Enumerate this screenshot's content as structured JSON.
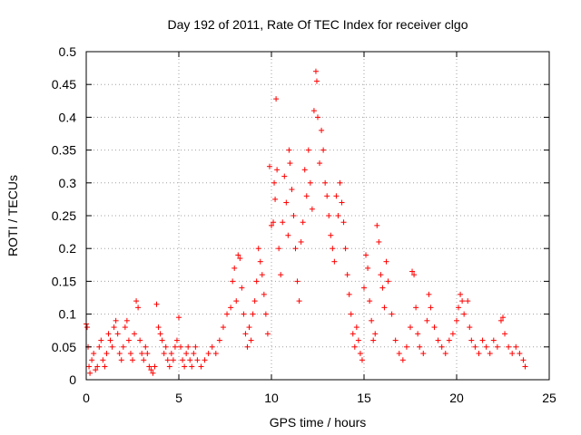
{
  "chart_data": {
    "type": "scatter",
    "title": "Day 192 of 2011, Rate Of TEC Index for receiver clgo",
    "xlabel": "GPS time / hours",
    "ylabel": "ROTI / TECUs",
    "xlim": [
      0,
      25
    ],
    "ylim": [
      0,
      0.5
    ],
    "xticks": [
      0,
      5,
      10,
      15,
      20,
      25
    ],
    "yticks": [
      0,
      0.05,
      0.1,
      0.15,
      0.2,
      0.25,
      0.3,
      0.35,
      0.4,
      0.45,
      0.5
    ],
    "xtick_labels": [
      "0",
      "5",
      "10",
      "15",
      "20",
      "25"
    ],
    "ytick_labels": [
      "0",
      "0.05",
      "0.1",
      "0.15",
      "0.2",
      "0.25",
      "0.3",
      "0.35",
      "0.4",
      "0.45",
      "0.5"
    ],
    "grid": true,
    "marker": "plus",
    "color": "#ff0000",
    "points": [
      [
        0.0,
        0.085
      ],
      [
        0.05,
        0.08
      ],
      [
        0.1,
        0.05
      ],
      [
        0.15,
        0.02
      ],
      [
        0.2,
        0.01
      ],
      [
        0.3,
        0.03
      ],
      [
        0.4,
        0.04
      ],
      [
        0.5,
        0.015
      ],
      [
        0.6,
        0.02
      ],
      [
        0.7,
        0.05
      ],
      [
        0.8,
        0.06
      ],
      [
        0.9,
        0.03
      ],
      [
        1.0,
        0.02
      ],
      [
        1.1,
        0.04
      ],
      [
        1.2,
        0.07
      ],
      [
        1.3,
        0.06
      ],
      [
        1.4,
        0.05
      ],
      [
        1.5,
        0.08
      ],
      [
        1.6,
        0.09
      ],
      [
        1.7,
        0.07
      ],
      [
        1.8,
        0.04
      ],
      [
        1.9,
        0.03
      ],
      [
        2.0,
        0.05
      ],
      [
        2.1,
        0.08
      ],
      [
        2.2,
        0.09
      ],
      [
        2.3,
        0.06
      ],
      [
        2.4,
        0.04
      ],
      [
        2.5,
        0.03
      ],
      [
        2.6,
        0.07
      ],
      [
        2.7,
        0.12
      ],
      [
        2.8,
        0.11
      ],
      [
        2.9,
        0.06
      ],
      [
        3.0,
        0.04
      ],
      [
        3.1,
        0.03
      ],
      [
        3.2,
        0.05
      ],
      [
        3.3,
        0.04
      ],
      [
        3.4,
        0.02
      ],
      [
        3.5,
        0.015
      ],
      [
        3.6,
        0.01
      ],
      [
        3.7,
        0.02
      ],
      [
        3.8,
        0.115
      ],
      [
        3.9,
        0.08
      ],
      [
        4.0,
        0.07
      ],
      [
        4.1,
        0.06
      ],
      [
        4.2,
        0.04
      ],
      [
        4.3,
        0.05
      ],
      [
        4.4,
        0.03
      ],
      [
        4.5,
        0.02
      ],
      [
        4.6,
        0.04
      ],
      [
        4.7,
        0.03
      ],
      [
        4.8,
        0.05
      ],
      [
        4.9,
        0.06
      ],
      [
        5.0,
        0.095
      ],
      [
        5.1,
        0.05
      ],
      [
        5.2,
        0.03
      ],
      [
        5.3,
        0.02
      ],
      [
        5.4,
        0.04
      ],
      [
        5.5,
        0.05
      ],
      [
        5.6,
        0.03
      ],
      [
        5.7,
        0.02
      ],
      [
        5.8,
        0.04
      ],
      [
        5.9,
        0.05
      ],
      [
        6.0,
        0.03
      ],
      [
        6.2,
        0.02
      ],
      [
        6.4,
        0.03
      ],
      [
        6.6,
        0.04
      ],
      [
        6.8,
        0.05
      ],
      [
        7.0,
        0.04
      ],
      [
        7.2,
        0.06
      ],
      [
        7.4,
        0.08
      ],
      [
        7.6,
        0.1
      ],
      [
        7.8,
        0.11
      ],
      [
        7.9,
        0.15
      ],
      [
        8.0,
        0.17
      ],
      [
        8.1,
        0.12
      ],
      [
        8.2,
        0.19
      ],
      [
        8.3,
        0.185
      ],
      [
        8.4,
        0.14
      ],
      [
        8.5,
        0.1
      ],
      [
        8.6,
        0.07
      ],
      [
        8.7,
        0.05
      ],
      [
        8.8,
        0.08
      ],
      [
        8.9,
        0.06
      ],
      [
        9.0,
        0.1
      ],
      [
        9.1,
        0.12
      ],
      [
        9.2,
        0.15
      ],
      [
        9.3,
        0.2
      ],
      [
        9.4,
        0.18
      ],
      [
        9.5,
        0.16
      ],
      [
        9.6,
        0.13
      ],
      [
        9.7,
        0.1
      ],
      [
        9.8,
        0.07
      ],
      [
        9.9,
        0.325
      ],
      [
        10.0,
        0.235
      ],
      [
        10.1,
        0.24
      ],
      [
        10.15,
        0.3
      ],
      [
        10.2,
        0.275
      ],
      [
        10.25,
        0.428
      ],
      [
        10.3,
        0.32
      ],
      [
        10.4,
        0.2
      ],
      [
        10.5,
        0.16
      ],
      [
        10.6,
        0.24
      ],
      [
        10.7,
        0.31
      ],
      [
        10.8,
        0.27
      ],
      [
        10.9,
        0.22
      ],
      [
        10.95,
        0.35
      ],
      [
        11.0,
        0.33
      ],
      [
        11.1,
        0.29
      ],
      [
        11.2,
        0.25
      ],
      [
        11.3,
        0.2
      ],
      [
        11.4,
        0.15
      ],
      [
        11.5,
        0.12
      ],
      [
        11.6,
        0.21
      ],
      [
        11.7,
        0.24
      ],
      [
        11.8,
        0.32
      ],
      [
        11.9,
        0.28
      ],
      [
        12.0,
        0.35
      ],
      [
        12.1,
        0.3
      ],
      [
        12.2,
        0.26
      ],
      [
        12.3,
        0.41
      ],
      [
        12.4,
        0.47
      ],
      [
        12.45,
        0.455
      ],
      [
        12.5,
        0.4
      ],
      [
        12.6,
        0.33
      ],
      [
        12.7,
        0.38
      ],
      [
        12.8,
        0.35
      ],
      [
        12.9,
        0.3
      ],
      [
        13.0,
        0.28
      ],
      [
        13.1,
        0.25
      ],
      [
        13.2,
        0.22
      ],
      [
        13.3,
        0.2
      ],
      [
        13.4,
        0.18
      ],
      [
        13.5,
        0.28
      ],
      [
        13.6,
        0.25
      ],
      [
        13.7,
        0.3
      ],
      [
        13.8,
        0.27
      ],
      [
        13.9,
        0.24
      ],
      [
        14.0,
        0.2
      ],
      [
        14.1,
        0.16
      ],
      [
        14.2,
        0.13
      ],
      [
        14.3,
        0.1
      ],
      [
        14.4,
        0.07
      ],
      [
        14.5,
        0.05
      ],
      [
        14.6,
        0.08
      ],
      [
        14.7,
        0.06
      ],
      [
        14.8,
        0.04
      ],
      [
        14.9,
        0.03
      ],
      [
        15.0,
        0.14
      ],
      [
        15.1,
        0.19
      ],
      [
        15.2,
        0.17
      ],
      [
        15.3,
        0.12
      ],
      [
        15.4,
        0.09
      ],
      [
        15.5,
        0.06
      ],
      [
        15.6,
        0.07
      ],
      [
        15.7,
        0.235
      ],
      [
        15.8,
        0.21
      ],
      [
        15.9,
        0.16
      ],
      [
        16.0,
        0.14
      ],
      [
        16.1,
        0.11
      ],
      [
        16.2,
        0.18
      ],
      [
        16.3,
        0.15
      ],
      [
        16.5,
        0.1
      ],
      [
        16.7,
        0.06
      ],
      [
        16.9,
        0.04
      ],
      [
        17.1,
        0.03
      ],
      [
        17.3,
        0.05
      ],
      [
        17.5,
        0.08
      ],
      [
        17.6,
        0.165
      ],
      [
        17.7,
        0.16
      ],
      [
        17.8,
        0.11
      ],
      [
        17.9,
        0.07
      ],
      [
        18.0,
        0.05
      ],
      [
        18.2,
        0.04
      ],
      [
        18.4,
        0.09
      ],
      [
        18.5,
        0.13
      ],
      [
        18.6,
        0.11
      ],
      [
        18.8,
        0.08
      ],
      [
        19.0,
        0.06
      ],
      [
        19.2,
        0.05
      ],
      [
        19.4,
        0.04
      ],
      [
        19.6,
        0.06
      ],
      [
        19.8,
        0.07
      ],
      [
        20.0,
        0.09
      ],
      [
        20.1,
        0.11
      ],
      [
        20.2,
        0.13
      ],
      [
        20.3,
        0.12
      ],
      [
        20.4,
        0.1
      ],
      [
        20.6,
        0.12
      ],
      [
        20.7,
        0.08
      ],
      [
        20.8,
        0.06
      ],
      [
        21.0,
        0.05
      ],
      [
        21.2,
        0.04
      ],
      [
        21.4,
        0.06
      ],
      [
        21.6,
        0.05
      ],
      [
        21.8,
        0.04
      ],
      [
        22.0,
        0.06
      ],
      [
        22.2,
        0.05
      ],
      [
        22.4,
        0.09
      ],
      [
        22.5,
        0.095
      ],
      [
        22.6,
        0.07
      ],
      [
        22.8,
        0.05
      ],
      [
        23.0,
        0.04
      ],
      [
        23.2,
        0.05
      ],
      [
        23.4,
        0.04
      ],
      [
        23.6,
        0.03
      ],
      [
        23.7,
        0.02
      ]
    ]
  }
}
